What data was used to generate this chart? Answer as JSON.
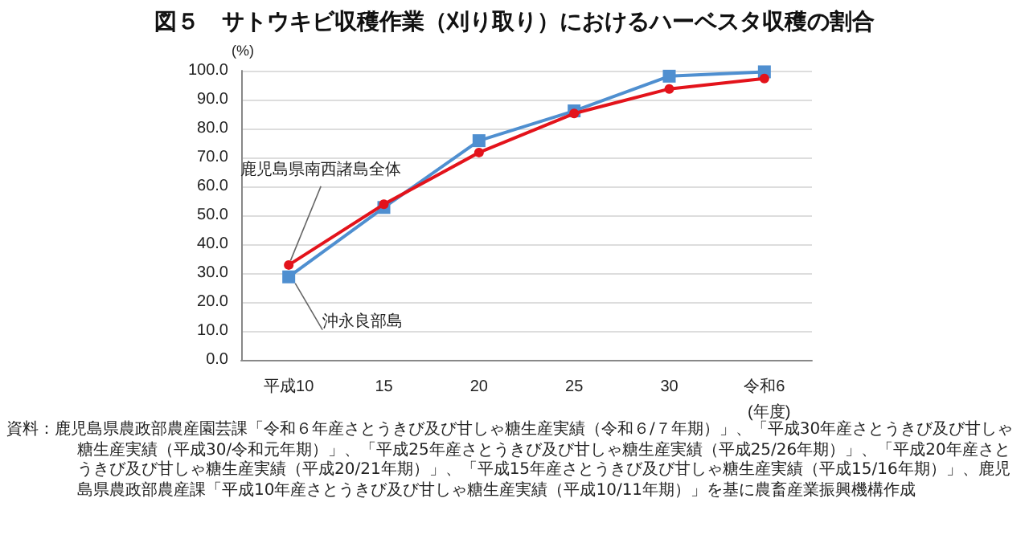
{
  "chart_data": {
    "type": "line",
    "title": "図５　サトウキビ収穫作業（刈り取り）におけるハーベスタ収穫の割合",
    "ylabel": "(%)",
    "xlabel": "(年度)",
    "categories": [
      "平成10",
      "15",
      "20",
      "25",
      "30",
      "令和6"
    ],
    "series": [
      {
        "name": "鹿児島県南西諸島全体",
        "color": "#e3131b",
        "marker": "circle",
        "values": [
          32.8,
          53.8,
          71.7,
          85.2,
          93.7,
          97.3
        ]
      },
      {
        "name": "沖永良部島",
        "color": "#4f8fd0",
        "marker": "square",
        "values": [
          28.7,
          52.7,
          75.8,
          86.1,
          98.1,
          99.6
        ]
      }
    ],
    "ylim": [
      0,
      100
    ],
    "yticks": [
      {
        "value": 0,
        "label": "0.0"
      },
      {
        "value": 10,
        "label": "10.0"
      },
      {
        "value": 20,
        "label": "20.0"
      },
      {
        "value": 30,
        "label": "30.0"
      },
      {
        "value": 40,
        "label": "40.0"
      },
      {
        "value": 50,
        "label": "50.0"
      },
      {
        "value": 60,
        "label": "60.0"
      },
      {
        "value": 70,
        "label": "70.0"
      },
      {
        "value": 80,
        "label": "80.0"
      },
      {
        "value": 90,
        "label": "90.0"
      },
      {
        "value": 100,
        "label": "100.0"
      }
    ],
    "grid": "y",
    "legend": false,
    "annotations": [
      "資料：鹿児島県農政部農産園芸課「令和６年産さとうきび及び甘しゃ糖生産実績（令和６/７年期）」、「平成30年産さとうきび及び甘しゃ糖生産実績（平成30/令和元年期）」、「平成25年産さとうきび及び甘しゃ糖生産実績（平成25/26年期）」、「平成20年産さとうきび及び甘しゃ糖生産実績（平成20/21年期）」、「平成15年産さとうきび及び甘しゃ糖生産実績（平成15/16年期）」、鹿児島県農政部農産課「平成10年産さとうきび及び甘しゃ糖生産実績（平成10/11年期）」を基に農畜産業振興機構作成"
    ]
  }
}
